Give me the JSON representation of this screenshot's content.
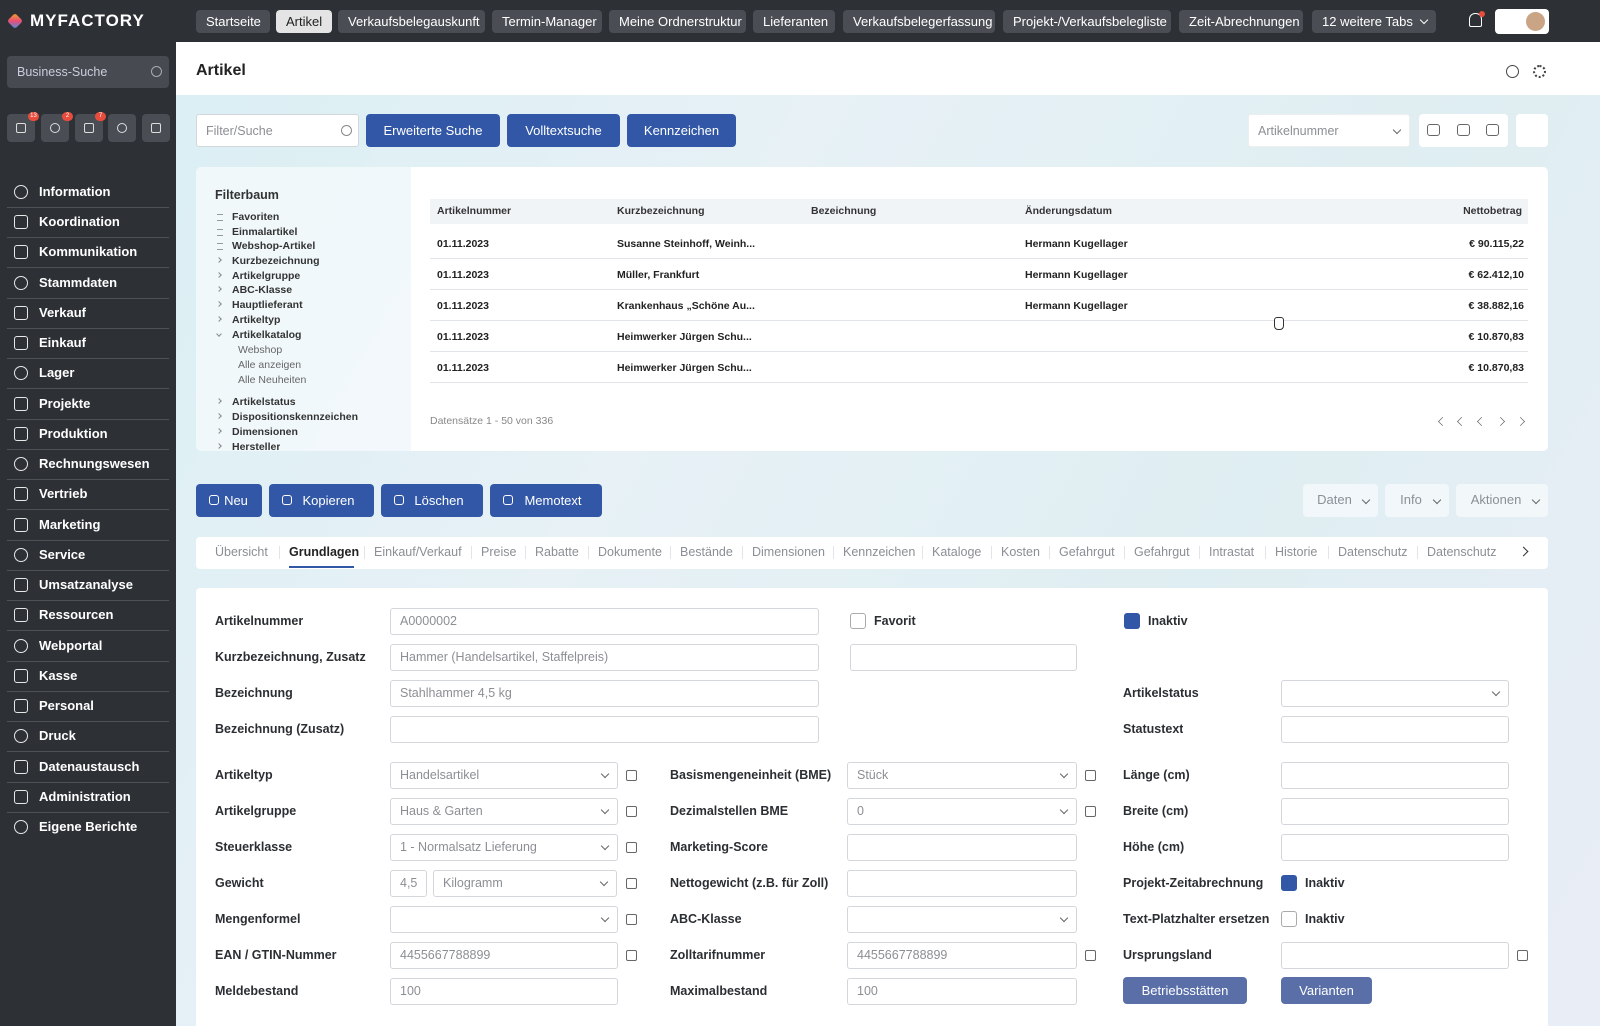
{
  "brand": "MYFACTORY",
  "top_tabs": [
    "Startseite",
    "Artikel",
    "Verkaufsbelegauskunft",
    "Termin-Manager",
    "Meine Ordnerstruktur",
    "Lieferanten",
    "Verkaufsbelegerfassung",
    "Projekt-/Verkaufsbelegliste",
    "Zeit-Abrechnungen",
    "12 weitere Tabs"
  ],
  "sidebar": {
    "search": "Business-Suche",
    "badges": [
      "13",
      "2",
      "7"
    ],
    "nav": [
      "Information",
      "Koordination",
      "Kommunikation",
      "Stammdaten",
      "Verkauf",
      "Einkauf",
      "Lager",
      "Projekte",
      "Produktion",
      "Rechnungswesen",
      "Vertrieb",
      "Marketing",
      "Service",
      "Umsatzanalyse",
      "Ressourcen",
      "Webportal",
      "Kasse",
      "Personal",
      "Druck",
      "Datenaustausch",
      "Administration",
      "Eigene Berichte"
    ]
  },
  "page_title": "Artikel",
  "toolbar": {
    "filter": "Filter/Suche",
    "buttons": [
      "Erweiterte Suche",
      "Volltextsuche",
      "Kennzeichen"
    ],
    "sort": "Artikelnummer"
  },
  "filter_tree": {
    "title": "Filterbaum",
    "items": [
      "Favoriten",
      "Einmalartikel",
      "Webshop-Artikel",
      "Kurzbezeichnung",
      "Artikelgruppe",
      "ABC-Klasse",
      "Hauptlieferant",
      "Artikeltyp",
      "Artikelkatalog",
      "Webshop",
      "Alle anzeigen",
      "Alle Neuheiten",
      "Artikelstatus",
      "Dispositionskennzeichen",
      "Dimensionen",
      "Hersteller"
    ]
  },
  "table": {
    "columns": [
      "Artikelnummer",
      "Kurzbezeichnung",
      "Bezeichnung",
      "Änderungsdatum",
      "Nettobetrag"
    ],
    "rows": [
      [
        "01.11.2023",
        "Susanne Steinhoff, Weinh...",
        null,
        "Hermann Kugellager",
        "€ 90.115,22"
      ],
      [
        "01.11.2023",
        "Müller, Frankfurt",
        null,
        "Hermann Kugellager",
        "€ 62.412,10"
      ],
      [
        "01.11.2023",
        "Krankenhaus „Schöne Au...",
        null,
        "Hermann Kugellager",
        "€ 38.882,16"
      ],
      [
        "01.11.2023",
        "Heimwerker Jürgen Schu...",
        null,
        null,
        "€ 10.870,83"
      ],
      [
        "01.11.2023",
        "Heimwerker Jürgen Schu...",
        null,
        null,
        "€ 10.870,83"
      ]
    ],
    "footer": "Datensätze 1 - 50 von 336"
  },
  "actions": [
    "Neu",
    "Kopieren",
    "Löschen",
    "Memotext"
  ],
  "menus": [
    "Daten",
    "Info",
    "Aktionen"
  ],
  "detail_tabs": [
    "Übersicht",
    "Grundlagen",
    "Einkauf/Verkauf",
    "Preise",
    "Rabatte",
    "Dokumente",
    "Bestände",
    "Dimensionen",
    "Kennzeichen",
    "Kataloge",
    "Kosten",
    "Gefahrgut",
    "Gefahrgut",
    "Intrastat",
    "Historie",
    "Datenschutz",
    "Datenschutz"
  ],
  "form": {
    "left": [
      {
        "label": "Artikelnummer",
        "value": "A0000002"
      },
      {
        "label": "Kurzbezeichnung, Zusatz",
        "value": "Hammer (Handelsartikel, Staffelpreis)"
      },
      {
        "label": "Bezeichnung",
        "value": "Stahlhammer 4,5 kg"
      },
      {
        "label": "Bezeichnung (Zusatz)"
      },
      {
        "label": "Artikeltyp",
        "value": "Handelsartikel"
      },
      {
        "label": "Artikelgruppe",
        "value": "Haus & Garten"
      },
      {
        "label": "Steuerklasse",
        "value": "1 - Normalsatz Lieferung"
      },
      {
        "label": "Gewicht",
        "value": "4,5",
        "unit": "Kilogramm"
      },
      {
        "label": "Mengenformel"
      },
      {
        "label": "EAN / GTIN-Nummer",
        "value": "4455667788899"
      },
      {
        "label": "Meldebestand",
        "value": "100"
      }
    ],
    "flags": [
      {
        "label": "Favorit",
        "checked": false
      },
      {
        "label": "Inaktiv",
        "checked": true
      }
    ],
    "middle": [
      {
        "label": "Basismengeneinheit (BME)",
        "value": "Stück"
      },
      {
        "label": "Dezimalstellen BME",
        "value": "0"
      },
      {
        "label": "Marketing-Score"
      },
      {
        "label": "Nettogewicht (z.B. für Zoll)"
      },
      {
        "label": "ABC-Klasse"
      },
      {
        "label": "Zolltarifnummer",
        "value": "4455667788899"
      },
      {
        "label": "Maximalbestand",
        "value": "100"
      }
    ],
    "right": [
      {
        "label": "Artikelstatus"
      },
      {
        "label": "Statustext"
      },
      {
        "label": "Länge (cm)"
      },
      {
        "label": "Breite (cm)"
      },
      {
        "label": "Höhe (cm)"
      },
      {
        "label": "Projekt-Zeitabrechnung",
        "check": "Inaktiv",
        "checked": true
      },
      {
        "label": "Text-Platzhalter ersetzen",
        "check": "Inaktiv",
        "checked": false
      },
      {
        "label": "Ursprungsland"
      }
    ],
    "buttons": [
      "Betriebsstätten",
      "Varianten"
    ]
  }
}
